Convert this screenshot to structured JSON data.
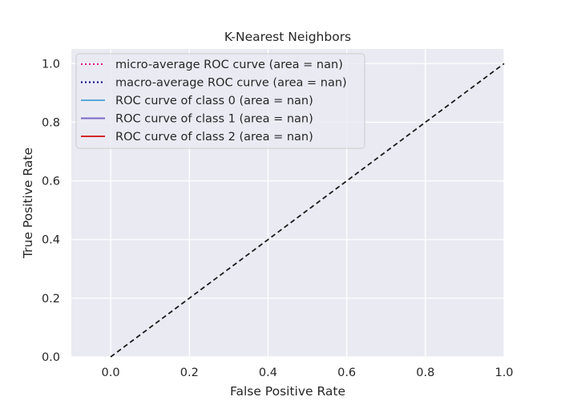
{
  "chart_data": {
    "type": "line",
    "title": "K-Nearest Neighbors",
    "xlabel": "False Positive Rate",
    "ylabel": "True Positive Rate",
    "xlim": [
      -0.1,
      1.0
    ],
    "ylim": [
      0.0,
      1.05
    ],
    "xticks": [
      0.0,
      0.2,
      0.4,
      0.6,
      0.8,
      1.0
    ],
    "xtick_labels": [
      "0.0",
      "0.2",
      "0.4",
      "0.6",
      "0.8",
      "1.0"
    ],
    "yticks": [
      0.0,
      0.2,
      0.4,
      0.6,
      0.8,
      1.0
    ],
    "ytick_labels": [
      "0.0",
      "0.2",
      "0.4",
      "0.6",
      "0.8",
      "1.0"
    ],
    "grid": true,
    "legend_position": "upper-left",
    "series": [
      {
        "name": "micro-average ROC curve (area = nan)",
        "color": "#e8198c",
        "style": "dotted",
        "values": []
      },
      {
        "name": "macro-average ROC curve (area = nan)",
        "color": "#000080",
        "style": "dotted",
        "values": []
      },
      {
        "name": "ROC curve of class 0 (area = nan)",
        "color": "#5aa9d6",
        "style": "solid",
        "values": []
      },
      {
        "name": "ROC curve of class 1 (area = nan)",
        "color": "#7b68c8",
        "style": "solid",
        "values": []
      },
      {
        "name": "ROC curve of class 2 (area = nan)",
        "color": "#d62728",
        "style": "solid",
        "values": []
      }
    ],
    "reference_line": {
      "x": [
        0.0,
        1.0
      ],
      "y": [
        0.0,
        1.0
      ],
      "color": "#1a1a1a",
      "style": "dashed"
    }
  }
}
